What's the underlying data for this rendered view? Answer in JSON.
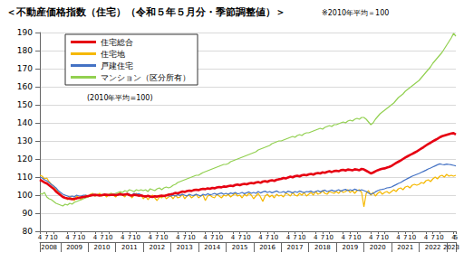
{
  "chart_data": {
    "type": "line",
    "title": "＜不動産価格指数（住宅）（令和５年５月分・季節調整値）＞",
    "subtitle": "※2010年平均＝100",
    "annotation": "(2010年平均=100)",
    "legend": "top-left",
    "grid": true,
    "ylim": [
      80,
      190
    ],
    "yticks": [
      80,
      90,
      100,
      110,
      120,
      130,
      140,
      150,
      160,
      170,
      180,
      190
    ],
    "years": [
      {
        "label": "2008",
        "months": 9
      },
      {
        "label": "2009",
        "months": 12
      },
      {
        "label": "2010",
        "months": 12
      },
      {
        "label": "2011",
        "months": 12
      },
      {
        "label": "2012",
        "months": 12
      },
      {
        "label": "2013",
        "months": 12
      },
      {
        "label": "2014",
        "months": 12
      },
      {
        "label": "2015",
        "months": 12
      },
      {
        "label": "2016",
        "months": 12
      },
      {
        "label": "2017",
        "months": 12
      },
      {
        "label": "2018",
        "months": 12
      },
      {
        "label": "2019",
        "months": 12
      },
      {
        "label": "2020",
        "months": 12
      },
      {
        "label": "2021",
        "months": 12
      },
      {
        "label": "2022",
        "months": 12
      },
      {
        "label": "2023",
        "months": 5
      }
    ],
    "categories": [
      "4",
      null,
      null,
      "7",
      null,
      null,
      "10",
      null,
      null,
      null,
      null,
      null,
      "4",
      null,
      null,
      "7",
      null,
      null,
      "10",
      null,
      null,
      null,
      null,
      null,
      "4",
      null,
      null,
      "7",
      null,
      null,
      "10",
      null,
      null,
      null,
      null,
      null,
      "4",
      null,
      null,
      "7",
      null,
      null,
      "10",
      null,
      null,
      null,
      null,
      null,
      "4",
      null,
      null,
      "7",
      null,
      null,
      "10",
      null,
      null,
      null,
      null,
      null,
      "4",
      null,
      null,
      "7",
      null,
      null,
      "10",
      null,
      null,
      null,
      null,
      null,
      "4",
      null,
      null,
      "7",
      null,
      null,
      "10",
      null,
      null,
      null,
      null,
      null,
      "4",
      null,
      null,
      "7",
      null,
      null,
      "10",
      null,
      null,
      null,
      null,
      null,
      "4",
      null,
      null,
      "7",
      null,
      null,
      "10",
      null,
      null,
      null,
      null,
      null,
      "4",
      null,
      null,
      "7",
      null,
      null,
      "10",
      null,
      null,
      null,
      null,
      null,
      "4",
      null,
      null,
      "7",
      null,
      null,
      "10",
      null,
      null,
      null,
      null,
      null,
      "4",
      null,
      null,
      "7",
      null,
      null,
      "10",
      null,
      null,
      null,
      null,
      null,
      "4",
      null,
      null,
      "7",
      null,
      null,
      "10",
      null,
      null,
      null,
      null,
      null,
      "4",
      null,
      null,
      "7",
      null,
      null,
      "10",
      null,
      null,
      null,
      null,
      null,
      "4",
      null,
      null,
      "7",
      null,
      null,
      "10",
      null,
      null,
      null,
      null,
      null,
      "4",
      "5"
    ],
    "series": [
      {
        "name": "住宅総合",
        "color": "#e60012",
        "values": [
          108.5,
          107.8,
          107,
          106.5,
          105.5,
          104.5,
          103.5,
          102,
          101,
          100,
          99,
          98.5,
          98.2,
          98,
          97.8,
          98,
          98.2,
          98.5,
          98.8,
          99,
          99.2,
          99.5,
          99.8,
          100,
          100.2,
          100,
          99.8,
          100,
          100.3,
          100.2,
          100,
          100.1,
          100.2,
          100,
          100.3,
          100.5,
          100.2,
          100.4,
          100.6,
          100,
          99.8,
          100.2,
          100,
          99.7,
          99.9,
          99.5,
          99.3,
          99.6,
          99.2,
          99,
          99.4,
          99.2,
          99.5,
          99.8,
          99.5,
          99.9,
          100.3,
          100.5,
          100.8,
          101.2,
          101,
          101.5,
          102,
          101.8,
          102.2,
          102.5,
          102.3,
          102.8,
          103,
          102.8,
          103.2,
          103.5,
          103.3,
          103.8,
          103.5,
          104,
          103.8,
          104.2,
          104.5,
          104.3,
          104.8,
          104.6,
          105,
          105.3,
          105,
          105.6,
          105.9,
          105.5,
          106,
          106.3,
          106,
          106.5,
          106.8,
          106.5,
          107,
          107.3,
          106.8,
          107.5,
          107.8,
          107.4,
          108,
          108.2,
          107.9,
          108.5,
          108.8,
          109,
          109.5,
          109.2,
          109.8,
          110.2,
          109.9,
          110.5,
          110.8,
          110.4,
          111,
          111.3,
          111,
          111.5,
          111.8,
          111.4,
          112,
          112.3,
          112,
          112.6,
          112.4,
          112.9,
          113.2,
          112.8,
          113.3,
          113.5,
          113.2,
          113.8,
          114,
          113.6,
          114.2,
          114,
          113.7,
          114.3,
          114.1,
          113.8,
          114.5,
          114.2,
          113.5,
          112.8,
          112,
          112.5,
          113.2,
          113.8,
          114.2,
          114.6,
          114.8,
          115.2,
          115.6,
          116.2,
          117,
          117.8,
          118.5,
          119.2,
          120,
          120.8,
          121.5,
          122.2,
          122.8,
          123.5,
          124.2,
          125,
          125.8,
          126.6,
          127.5,
          128.3,
          129,
          129.8,
          130.5,
          131.2,
          132,
          132.6,
          133,
          133.4,
          133.8,
          134.1,
          134.3,
          133.6
        ]
      },
      {
        "name": "住宅地",
        "color": "#f5b800",
        "values": [
          111,
          110.5,
          109,
          109.5,
          107.5,
          106,
          105,
          103,
          101.5,
          100.5,
          99,
          98.5,
          97.5,
          99,
          98,
          97,
          99.5,
          98.5,
          97.5,
          99,
          100,
          99,
          100.5,
          101,
          99.5,
          100,
          101,
          99.5,
          100.5,
          99,
          100.5,
          101,
          100,
          99,
          100.5,
          101.5,
          100,
          99,
          101,
          100.5,
          98.5,
          100,
          101,
          99.5,
          100,
          98,
          99.5,
          97.5,
          99,
          100,
          98.5,
          97,
          99,
          98.5,
          100,
          98,
          99,
          99.5,
          98,
          100,
          98.5,
          99,
          100.5,
          98,
          99.5,
          100,
          98.5,
          99.5,
          100.5,
          98.5,
          99.5,
          100,
          97,
          99.5,
          100,
          99,
          98.5,
          100.5,
          99.5,
          98.5,
          100,
          99.5,
          100.5,
          99,
          100,
          101,
          99.5,
          100,
          98.5,
          100.5,
          99.5,
          101,
          100,
          98,
          99.5,
          101,
          99,
          96.5,
          99.5,
          100.5,
          99,
          100,
          98.5,
          100.5,
          99.5,
          100,
          99,
          101,
          100.5,
          99.5,
          101.5,
          100,
          99.5,
          101,
          100,
          101.5,
          99.5,
          100.5,
          101.5,
          100,
          102,
          100.5,
          101,
          102.5,
          101,
          100.5,
          102,
          101.5,
          101,
          102,
          101,
          102.5,
          101.5,
          102,
          103,
          101.5,
          102.5,
          101,
          102.5,
          103,
          101.5,
          93.5,
          101,
          102.5,
          100,
          101.5,
          99.5,
          101,
          102,
          100.5,
          101.5,
          102,
          101,
          102,
          103,
          102,
          103.5,
          104,
          103,
          104.5,
          105,
          104,
          105.5,
          106,
          105.5,
          106,
          107,
          106.5,
          108,
          108.5,
          107.5,
          109,
          110,
          109,
          110.5,
          111,
          110,
          111.5,
          110.5,
          111,
          110.5,
          111
        ]
      },
      {
        "name": "戸建住宅",
        "color": "#4472c4",
        "values": [
          110,
          109.5,
          108.5,
          108,
          107,
          106,
          105,
          104,
          102.5,
          101.5,
          100.5,
          100,
          99.5,
          99,
          99.5,
          99,
          100,
          99.5,
          99.5,
          100,
          100,
          99.5,
          100,
          100.5,
          100,
          99.8,
          100.2,
          100,
          100.5,
          100,
          99.8,
          100.3,
          100,
          100.5,
          100,
          101,
          100.5,
          100,
          101,
          100.5,
          100,
          101,
          100.5,
          100.8,
          100.2,
          99.5,
          99,
          99.8,
          99.2,
          98.8,
          99.5,
          99,
          99.8,
          99.2,
          99.5,
          100,
          99.5,
          99.5,
          100,
          99.5,
          100.3,
          99.8,
          100.5,
          100,
          99.5,
          100.5,
          100,
          99.8,
          100.5,
          100,
          99.5,
          100.5,
          100,
          100.8,
          100.2,
          100.5,
          101,
          100.3,
          100.8,
          101.2,
          100.5,
          101,
          100.5,
          101.2,
          100.8,
          101.5,
          100.7,
          101,
          101.5,
          100.8,
          101.3,
          101.8,
          101,
          101.5,
          101,
          102,
          101.2,
          101.8,
          102.2,
          101.5,
          102,
          101.3,
          101.8,
          102.3,
          101.6,
          101.5,
          102,
          101.3,
          102.2,
          101.8,
          101.2,
          102,
          101.5,
          102.3,
          101.8,
          101.4,
          102,
          101.8,
          102.3,
          101.5,
          102,
          102.5,
          101.8,
          102.3,
          102.8,
          102,
          102.4,
          102.8,
          102.2,
          102.5,
          103,
          102.2,
          102.8,
          103.2,
          102.5,
          103,
          102.6,
          103.3,
          102.8,
          102.5,
          103,
          102.5,
          102,
          101.2,
          100.5,
          101,
          101.8,
          102.5,
          103,
          103.2,
          103.5,
          104,
          104.2,
          104.5,
          105.2,
          105.8,
          106.5,
          107,
          107.8,
          108.5,
          109.2,
          109.8,
          110.5,
          111,
          111.5,
          112,
          112.6,
          113.2,
          113.8,
          114.5,
          115,
          115.6,
          116.2,
          116.8,
          117.3,
          117,
          116.8,
          117.2,
          117,
          116.8,
          116.5,
          116.2
        ]
      },
      {
        "name": "マンション（区分所有）",
        "color": "#92d050",
        "values": [
          101,
          100.5,
          101.5,
          99,
          98,
          97.5,
          96.5,
          95.5,
          95,
          94.5,
          94,
          95,
          94.5,
          95.5,
          95,
          96,
          96.5,
          97,
          97.5,
          98,
          98.5,
          99,
          99.5,
          100,
          99.5,
          100.5,
          100,
          100.5,
          99.8,
          100.2,
          100.5,
          101,
          100.5,
          101,
          101.5,
          102,
          101.5,
          102.5,
          102,
          103,
          102.5,
          102,
          103,
          102.5,
          103,
          102.5,
          103,
          102,
          103.5,
          103,
          102.5,
          103.5,
          104,
          103,
          104,
          104.5,
          104,
          104.5,
          105.5,
          106,
          107,
          107.5,
          108,
          108.5,
          109,
          109.5,
          110,
          110.5,
          111,
          111,
          111.8,
          112.5,
          113,
          113.5,
          114,
          114.5,
          115,
          115.5,
          116,
          116.5,
          117,
          117,
          117.5,
          118.5,
          119,
          119.5,
          120,
          120.5,
          121,
          121.5,
          122,
          122.5,
          123,
          123.5,
          124,
          125,
          125.5,
          126,
          126.5,
          127,
          127.5,
          128.5,
          129,
          129.5,
          130,
          130,
          130.5,
          131,
          131.5,
          132,
          132.5,
          132,
          133,
          133.5,
          133,
          134,
          134.5,
          134.5,
          135,
          135.5,
          136,
          136.5,
          137,
          136.5,
          137.5,
          138,
          138.5,
          138,
          139,
          139,
          139.5,
          140,
          140.5,
          140,
          141,
          141.5,
          141,
          142,
          142.5,
          142,
          143,
          143,
          142,
          140.5,
          139,
          140,
          142,
          143.5,
          145,
          146,
          147,
          148,
          149,
          150,
          151,
          152.5,
          154,
          155,
          156,
          157.5,
          158.5,
          159.5,
          160.5,
          161.5,
          162.5,
          163.5,
          165,
          166.5,
          168,
          169.5,
          171,
          173,
          174.5,
          176,
          177.5,
          179,
          181,
          183,
          185,
          187,
          189.5,
          188
        ]
      }
    ]
  }
}
